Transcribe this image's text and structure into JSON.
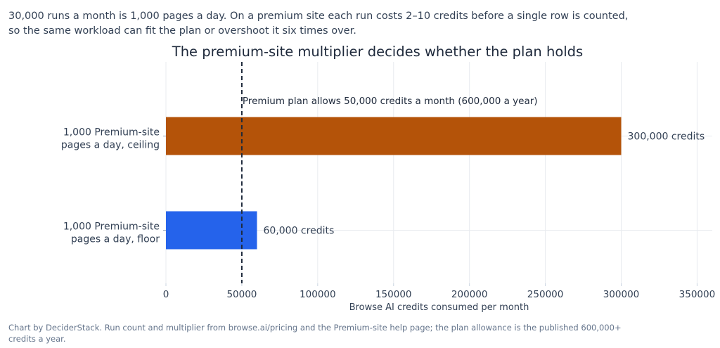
{
  "intro": {
    "line1": "30,000 runs a month is 1,000 pages a day. On a premium site each run costs 2–10 credits before a single row is counted,",
    "line2": "so the same workload can fit the plan or overshoot it six times over."
  },
  "chart_data": {
    "type": "bar",
    "orientation": "horizontal",
    "title": "The premium-site multiplier decides whether the plan holds",
    "xlabel": "Browse AI credits consumed per month",
    "ylabel": "",
    "xlim": [
      0,
      360000
    ],
    "x_ticks": [
      0,
      50000,
      100000,
      150000,
      200000,
      250000,
      300000,
      350000
    ],
    "x_tick_labels": [
      "0",
      "50000",
      "100000",
      "150000",
      "200000",
      "250000",
      "300000",
      "350000"
    ],
    "grid": true,
    "bars": [
      {
        "category_lines": [
          "1,000 Premium-site",
          "pages a day, ceiling"
        ],
        "value": 300000,
        "label": "300,000 credits",
        "color": "#b45309"
      },
      {
        "category_lines": [
          "1,000 Premium-site",
          "pages a day, floor"
        ],
        "value": 60000,
        "label": "60,000 credits",
        "color": "#2563eb"
      }
    ],
    "reference_line": {
      "value": 50000,
      "label": "Premium plan allows 50,000 credits a month (600,000 a year)",
      "color": "#1e293b",
      "style": "dashed"
    }
  },
  "credit": {
    "line1": "Chart by DeciderStack. Run count and multiplier from browse.ai/pricing and the Premium-site help page; the plan allowance is the published 600,000+",
    "line2": "credits a year."
  }
}
